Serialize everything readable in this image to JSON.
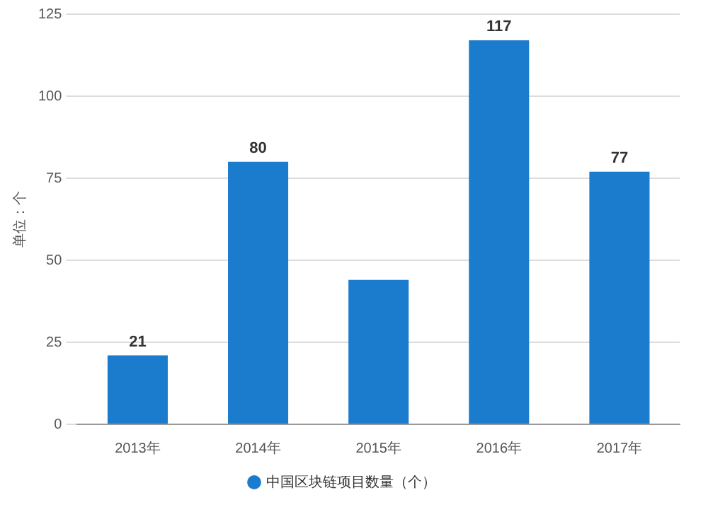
{
  "chart_data": {
    "type": "bar",
    "ylabel": "单位：个",
    "categories": [
      "2013年",
      "2014年",
      "2015年",
      "2016年",
      "2017年"
    ],
    "series": [
      {
        "name": "中国区块链项目数量（个）",
        "color": "#1b7bcc",
        "values": [
          21,
          80,
          44,
          117,
          77
        ],
        "value_labels": [
          "21",
          "80",
          null,
          "117",
          "77"
        ]
      }
    ],
    "ylim": [
      0,
      125
    ],
    "yticks": [
      0,
      25,
      50,
      75,
      100,
      125
    ],
    "grid": "y",
    "legend": "bottom"
  }
}
